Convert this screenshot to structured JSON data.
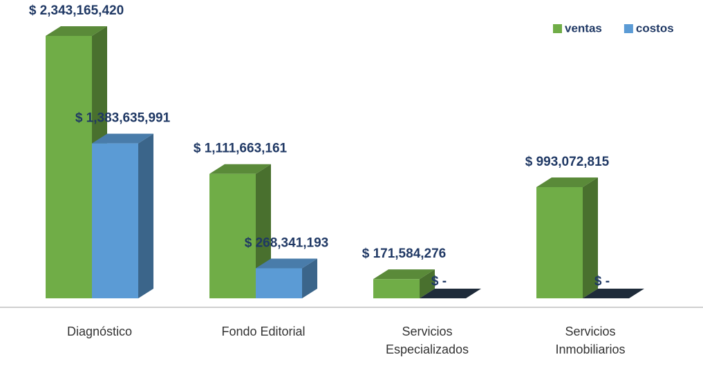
{
  "chart_data": {
    "type": "bar3d",
    "categories": [
      "Diagnóstico",
      "Fondo Editorial",
      "Servicios Especializados",
      "Servicios Inmobiliarios"
    ],
    "series": [
      {
        "name": "ventas",
        "color": "#70ad47",
        "values": [
          2343165420,
          1111663161,
          171584276,
          993072815
        ],
        "value_labels": [
          "$ 2,343,165,420",
          "$ 1,111,663,161",
          "$ 171,584,276",
          "$ 993,072,815"
        ]
      },
      {
        "name": "costos",
        "color": "#5b9bd5",
        "values": [
          1383635991,
          268341193,
          0,
          0
        ],
        "value_labels": [
          "$ 1,383,635,991",
          "$ 268,341,193",
          "$ -",
          "$ -"
        ]
      }
    ],
    "legend": "top-right"
  }
}
